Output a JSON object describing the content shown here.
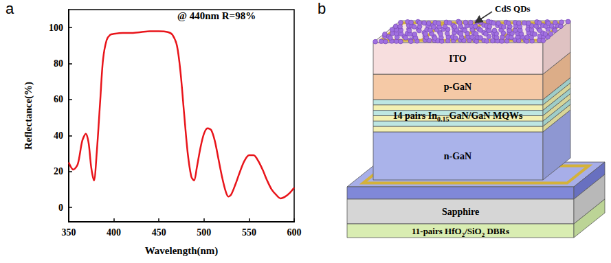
{
  "chart_data": {
    "panel": "a",
    "type": "line",
    "x_label": "Wavelength(nm)",
    "y_label": "Reflectance(%)",
    "annotation": "@ 440nm R=98%",
    "color": "#e8141a",
    "grid": false,
    "x": [
      350,
      355,
      360,
      365,
      369,
      372,
      375,
      378,
      381,
      385,
      388,
      392,
      396,
      400,
      410,
      420,
      430,
      440,
      450,
      460,
      465,
      470,
      474,
      478,
      482,
      486,
      489,
      492,
      496,
      500,
      504,
      508,
      512,
      516,
      520,
      524,
      527,
      530,
      535,
      540,
      545,
      550,
      555,
      560,
      565,
      570,
      575,
      580,
      585,
      590,
      595,
      600
    ],
    "values": [
      25,
      21,
      24,
      37,
      41,
      36,
      22,
      15,
      30,
      60,
      82,
      93,
      96,
      96.5,
      97,
      97,
      97.5,
      98,
      98,
      97.5,
      96,
      90,
      75,
      52,
      30,
      17,
      15,
      22,
      33,
      41,
      44,
      43,
      37,
      27,
      17,
      9,
      6,
      7,
      13,
      20,
      26,
      29,
      29,
      26,
      21,
      15,
      10,
      7,
      5,
      6,
      8,
      11
    ],
    "xlim": [
      350,
      600
    ],
    "xticks": [
      350,
      400,
      450,
      500,
      550,
      600
    ],
    "ylim": [
      -8,
      110
    ],
    "yticks": [
      0,
      20,
      40,
      60,
      80,
      100
    ]
  },
  "diagram": {
    "panel": "b",
    "quantum_dots_label": "CdS QDs",
    "layers": [
      {
        "label": "ITO"
      },
      {
        "label": "p-GaN"
      },
      {
        "label": [
          {
            "text": "14 pairs In"
          },
          {
            "sub": "0.15"
          },
          {
            "text": "GaN/GaN MQWs"
          }
        ]
      },
      {
        "label": "n-GaN"
      },
      {
        "label": "Sapphire"
      },
      {
        "label": [
          {
            "text": "11-pairs HfO"
          },
          {
            "sub": "2"
          },
          {
            "text": "/SiO"
          },
          {
            "sub": "2"
          },
          {
            "text": " DBRs"
          }
        ]
      }
    ]
  }
}
